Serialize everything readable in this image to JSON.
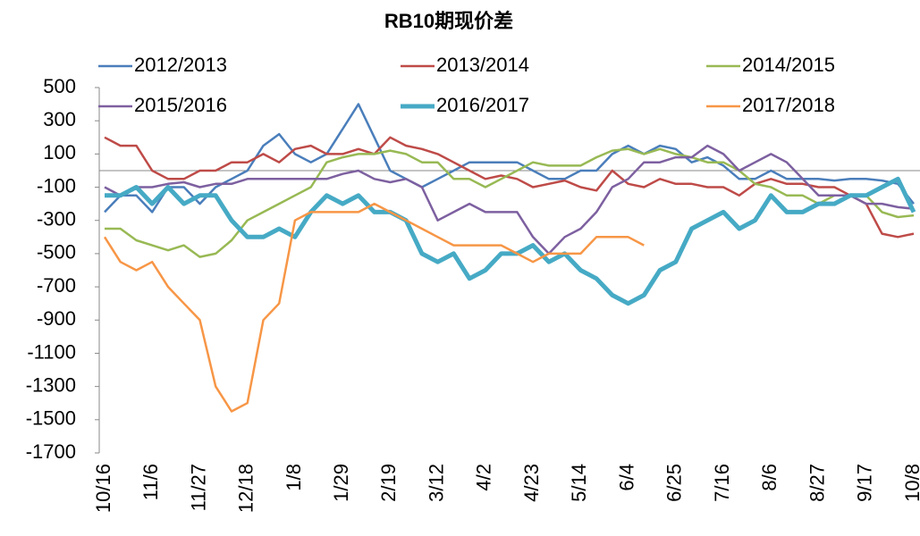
{
  "chart_data": {
    "type": "line",
    "title": "RB10期现价差",
    "categories": [
      "10/16",
      null,
      null,
      "11/6",
      null,
      null,
      "11/27",
      null,
      null,
      "12/18",
      null,
      null,
      "1/8",
      null,
      null,
      "1/29",
      null,
      null,
      "2/19",
      null,
      null,
      "3/12",
      null,
      null,
      "4/2",
      null,
      null,
      "4/23",
      null,
      null,
      "5/14",
      null,
      null,
      "6/4",
      null,
      null,
      "6/25",
      null,
      null,
      "7/16",
      null,
      null,
      "8/6",
      null,
      null,
      "8/27",
      null,
      null,
      "9/17",
      null,
      null,
      "10/8"
    ],
    "series": [
      {
        "name": "2012/2013",
        "color": "#4a7ebb",
        "values": [
          -250,
          -150,
          -150,
          -250,
          -100,
          -100,
          -200,
          -100,
          -50,
          0,
          150,
          220,
          100,
          50,
          100,
          250,
          400,
          200,
          0,
          -50,
          -100,
          -50,
          0,
          50,
          50,
          50,
          50,
          0,
          -50,
          -50,
          0,
          0,
          100,
          150,
          100,
          150,
          130,
          50,
          80,
          30,
          -50,
          -50,
          0,
          -50,
          -50,
          -50,
          -60,
          -50,
          -50,
          -60,
          -80,
          -200
        ]
      },
      {
        "name": "2013/2014",
        "color": "#be4b48",
        "values": [
          200,
          150,
          150,
          0,
          -50,
          -50,
          0,
          0,
          50,
          50,
          100,
          50,
          130,
          150,
          100,
          100,
          130,
          100,
          200,
          150,
          130,
          100,
          50,
          0,
          -50,
          -30,
          -50,
          -100,
          -80,
          -60,
          -100,
          -120,
          0,
          -80,
          -100,
          -50,
          -80,
          -80,
          -100,
          -100,
          -150,
          -80,
          -50,
          -80,
          -80,
          -100,
          -100,
          -150,
          -200,
          -380,
          -400,
          -380
        ]
      },
      {
        "name": "2014/2015",
        "color": "#98b954",
        "values": [
          -350,
          -350,
          -420,
          -450,
          -480,
          -450,
          -520,
          -500,
          -420,
          -300,
          -250,
          -200,
          -150,
          -100,
          50,
          80,
          100,
          100,
          120,
          100,
          50,
          50,
          -50,
          -50,
          -100,
          -50,
          0,
          50,
          30,
          30,
          30,
          80,
          120,
          130,
          100,
          130,
          100,
          80,
          50,
          50,
          0,
          -80,
          -100,
          -150,
          -150,
          -200,
          -150,
          -150,
          -150,
          -250,
          -280,
          -270
        ]
      },
      {
        "name": "2015/2016",
        "color": "#7d60a0",
        "values": [
          -100,
          -150,
          -100,
          -100,
          -80,
          -70,
          -100,
          -80,
          -80,
          -50,
          -50,
          -50,
          -50,
          -50,
          -50,
          -20,
          0,
          -50,
          -70,
          -50,
          -100,
          -300,
          -250,
          -200,
          -250,
          -250,
          -250,
          -400,
          -500,
          -400,
          -350,
          -250,
          -100,
          -50,
          50,
          50,
          80,
          80,
          150,
          100,
          0,
          50,
          100,
          50,
          -50,
          -150,
          -150,
          -150,
          -200,
          -200,
          -220,
          -230
        ]
      },
      {
        "name": "2016/2017",
        "color": "#46aac5",
        "values": [
          -150,
          -150,
          -100,
          -200,
          -100,
          -200,
          -150,
          -150,
          -300,
          -400,
          -400,
          -350,
          -400,
          -250,
          -150,
          -200,
          -150,
          -250,
          -250,
          -300,
          -500,
          -550,
          -500,
          -650,
          -600,
          -500,
          -500,
          -450,
          -550,
          -500,
          -600,
          -650,
          -750,
          -800,
          -750,
          -600,
          -550,
          -350,
          -300,
          -250,
          -350,
          -300,
          -150,
          -250,
          -250,
          -200,
          -200,
          -150,
          -150,
          -100,
          -50,
          -250
        ]
      },
      {
        "name": "2017/2018",
        "color": "#f79646",
        "values": [
          -400,
          -550,
          -600,
          -550,
          -700,
          -800,
          -900,
          -1300,
          -1450,
          -1400,
          -900,
          -800,
          -300,
          -250,
          -250,
          -250,
          -250,
          -200,
          -250,
          -300,
          -350,
          -400,
          -450,
          -450,
          -450,
          -450,
          -500,
          -550,
          -500,
          -500,
          -500,
          -400,
          -400,
          -400,
          -450,
          null,
          null,
          null,
          null,
          null,
          null,
          null,
          null,
          null,
          null,
          null,
          null,
          null,
          null,
          null,
          null,
          null
        ]
      }
    ],
    "ylim": [
      -1700,
      500
    ],
    "yticks": [
      500,
      300,
      100,
      -100,
      -300,
      -500,
      -700,
      -900,
      -1100,
      -1300,
      -1500,
      -1700
    ],
    "legend": "top"
  }
}
